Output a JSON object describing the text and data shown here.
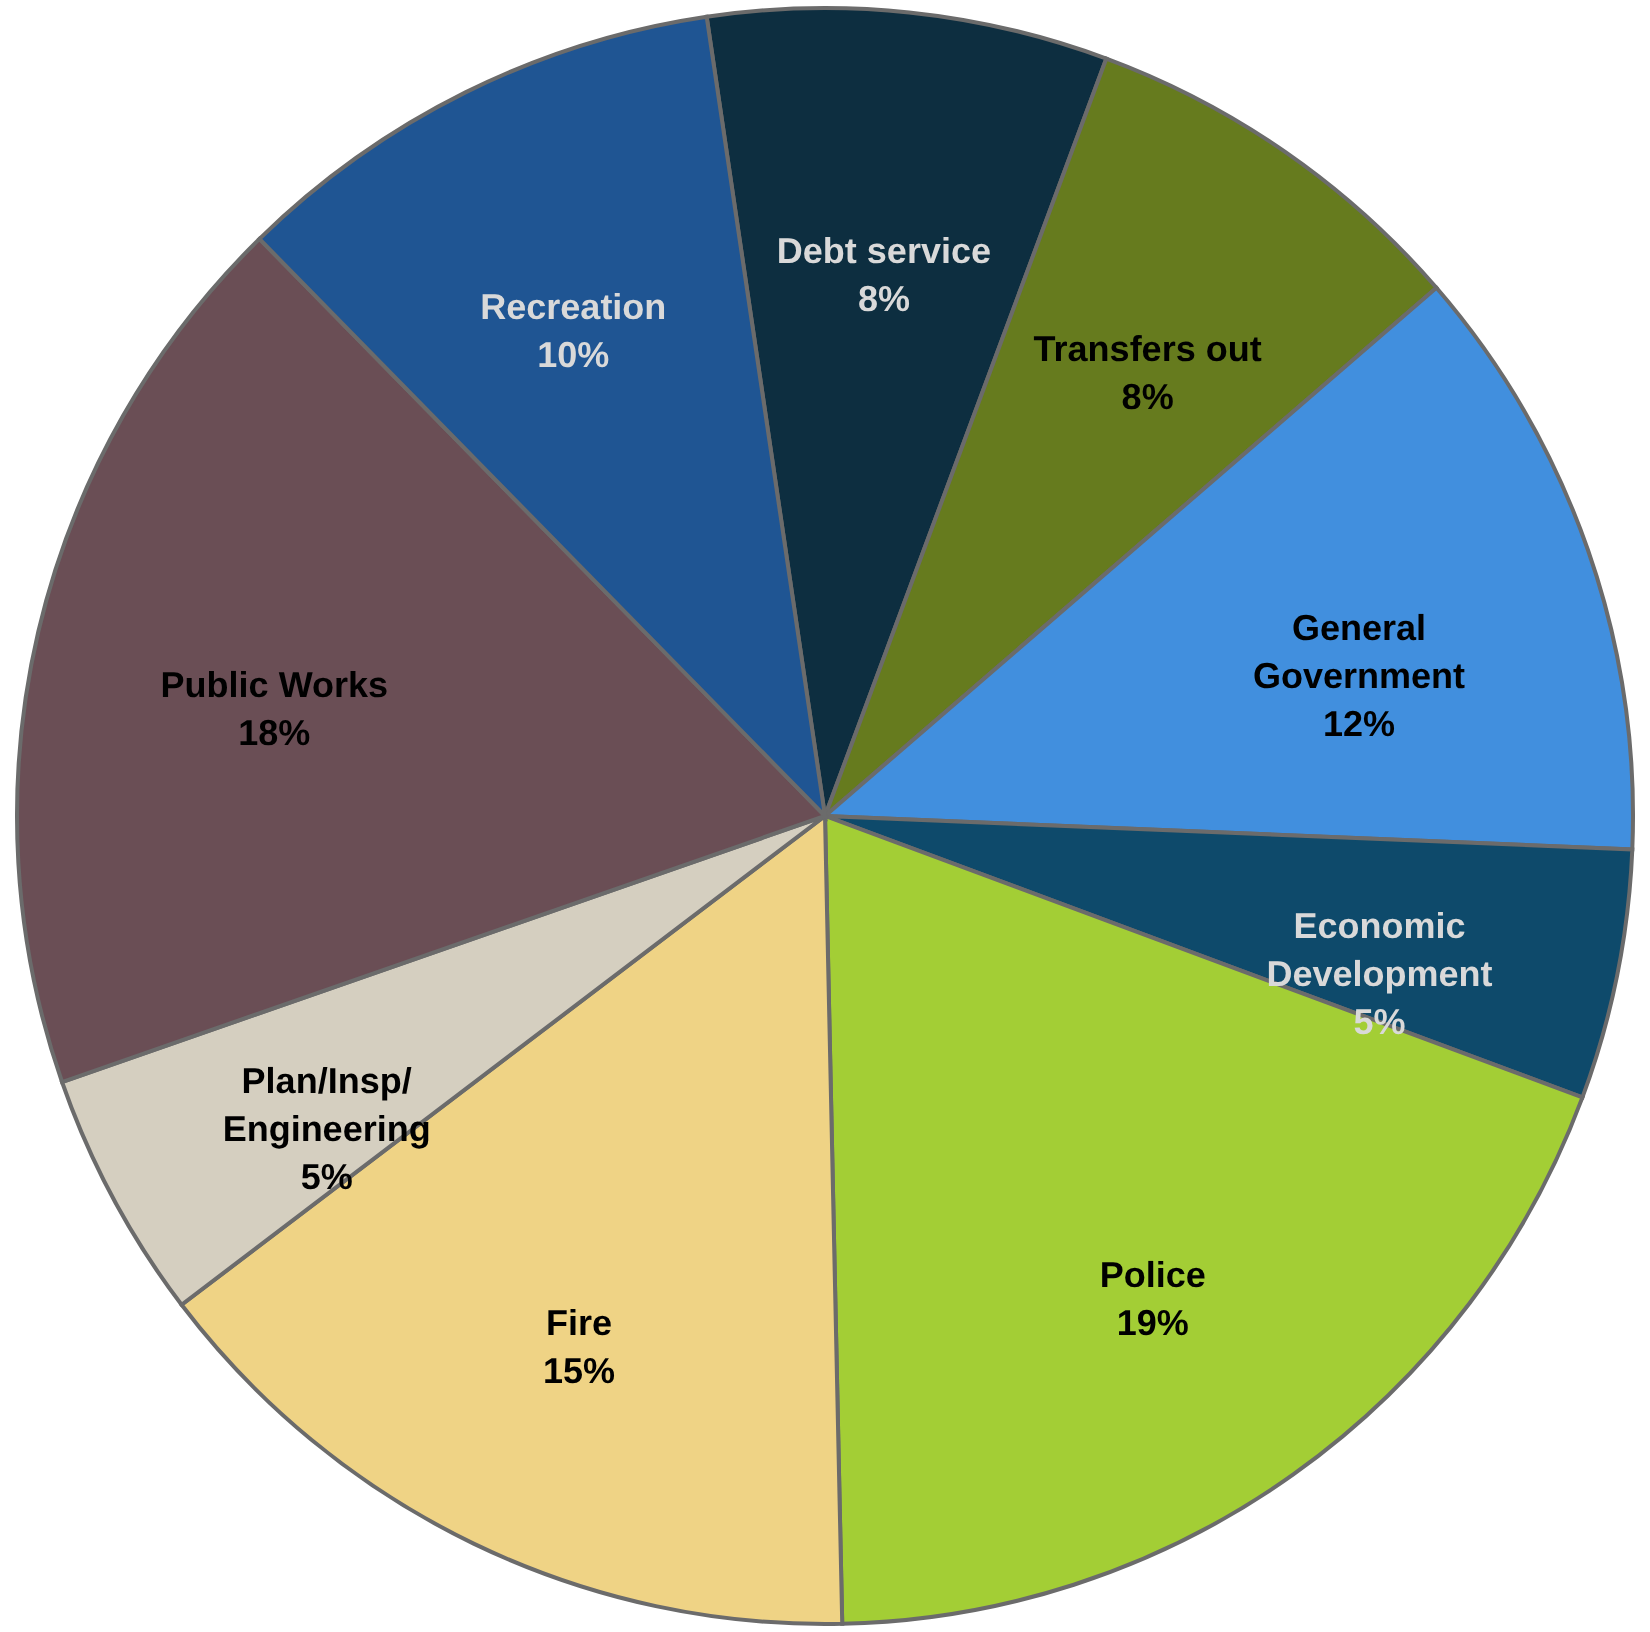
{
  "chart_data": {
    "type": "pie",
    "categories": [
      "Debt service",
      "Transfers out",
      "General Government",
      "Economic Development",
      "Police",
      "Fire",
      "Plan/Insp/ Engineering",
      "Public Works",
      "Recreation"
    ],
    "values": [
      8,
      8,
      12,
      5,
      19,
      15,
      5,
      18,
      10
    ],
    "colors": [
      "#0d2e40",
      "#667b1e",
      "#418fde",
      "#0e4a6b",
      "#a3ce35",
      "#efd385",
      "#d5cfc0",
      "#6a4e55",
      "#1f5593"
    ],
    "value_labels": [
      "8%",
      "8%",
      "12%",
      "5%",
      "19%",
      "15%",
      "5%",
      "18%",
      "10%"
    ],
    "legend": false
  }
}
